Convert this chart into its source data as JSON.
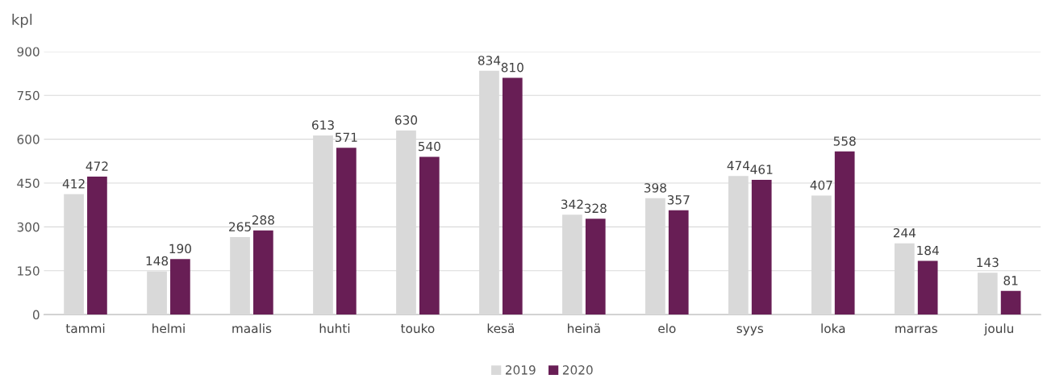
{
  "chart_data": {
    "type": "bar",
    "ylabel": "kpl",
    "categories": [
      "tammi",
      "helmi",
      "maalis",
      "huhti",
      "touko",
      "kesä",
      "heinä",
      "elo",
      "syys",
      "loka",
      "marras",
      "joulu"
    ],
    "series": [
      {
        "name": "2019",
        "color": "#d9d9d9",
        "values": [
          412,
          148,
          265,
          613,
          630,
          834,
          342,
          398,
          474,
          407,
          244,
          143
        ]
      },
      {
        "name": "2020",
        "color": "#681e55",
        "values": [
          472,
          190,
          288,
          571,
          540,
          810,
          328,
          357,
          461,
          558,
          184,
          81
        ]
      }
    ],
    "ylim": [
      0,
      900
    ],
    "yticks": [
      0,
      150,
      300,
      450,
      600,
      750,
      900
    ],
    "grid": "y",
    "legend": "bottom",
    "data_labels": true
  }
}
